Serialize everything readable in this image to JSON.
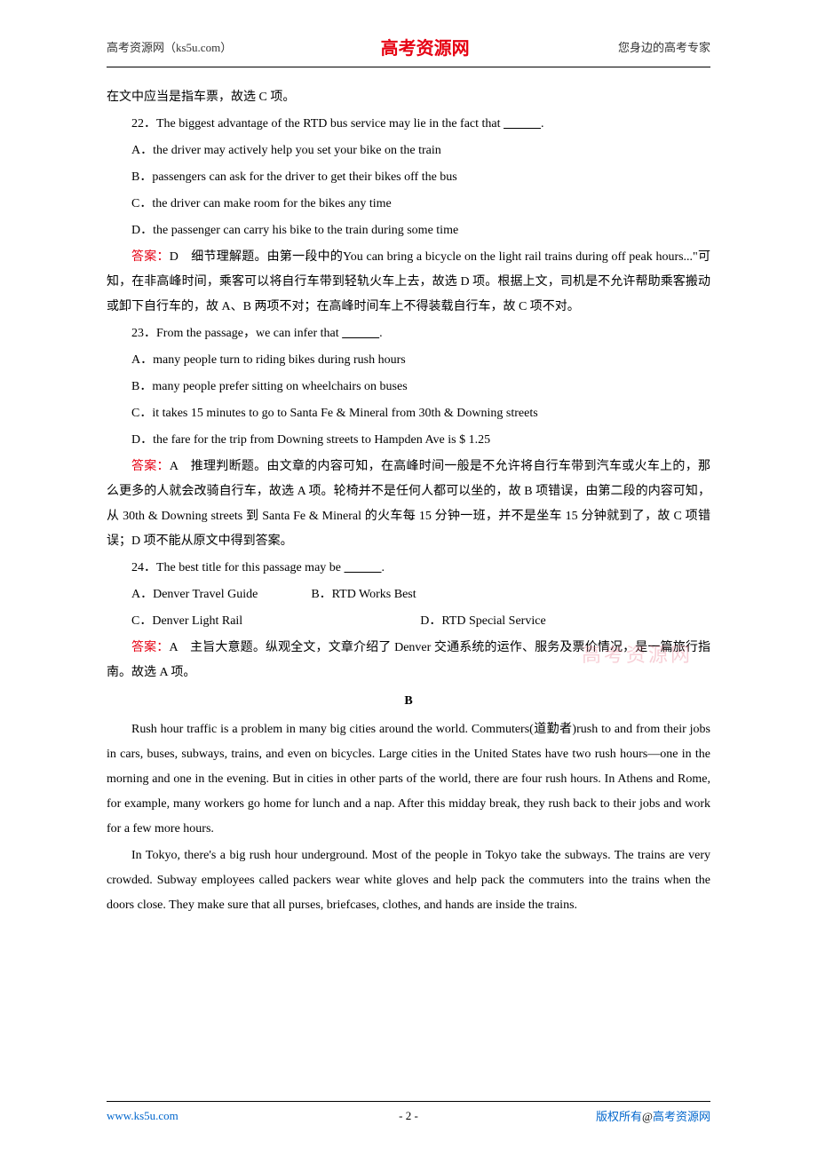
{
  "header": {
    "left": "高考资源网（ks5u.com）",
    "center": "高考资源网",
    "right": "您身边的高考专家"
  },
  "top_line": "在文中应当是指车票，故选 C 项。",
  "q22": {
    "stem_pre": "22．The biggest advantage of the RTD bus service may lie in the fact that ",
    "stem_post": ".",
    "A": "A．the driver may actively help you set your bike on the train",
    "B": "B．passengers can ask for the driver to get their bikes off the bus",
    "C": "C．the driver can make room for the bikes any time",
    "D": "D．the passenger can carry his bike to the train during some time",
    "answer_label": "答案：",
    "answer_letter": "D",
    "answer_text1": "　细节理解题。由第一段中的You can bring a bicycle on the light rail trains during off peak hours...\"可知，在非高峰时间，乘客可以将自行车带到轻轨火车上去，故选 D 项。根据上文，司机是不允许帮助乘客搬动或卸下自行车的，故 A、B 两项不对；在高峰时间车上不得装载自行车，故 C 项不对。"
  },
  "q23": {
    "stem_pre": "23．From the passage，we can infer that ",
    "stem_post": ".",
    "A": "A．many people turn to riding bikes during rush hours",
    "B": "B．many people prefer sitting on wheelchairs on buses",
    "C": "C．it takes 15 minutes to go to Santa Fe & Mineral  from 30th & Downing streets",
    "D": "D．the fare for the trip from Downing streets to Hampden Ave is $ 1.25",
    "answer_label": "答案：",
    "answer_letter": "A",
    "answer_text1": "　推理判断题。由文章的内容可知，在高峰时间一般是不允许将自行车带到汽车或火车上的，那么更多的人就会改骑自行车，故选 A 项。轮椅并不是任何人都可以坐的，故 B 项错误，由第二段的内容可知，从 30th & Downing streets 到 Santa Fe & Mineral 的火车每 15 分钟一班，并不是坐车 15 分钟就到了，故 C 项错误；D 项不能从原文中得到答案。"
  },
  "q24": {
    "stem_pre": "24．The best title for this passage may be ",
    "stem_post": ".",
    "A": "A．Denver Travel Guide",
    "B": "B．RTD Works Best",
    "C": "C．Denver Light Rail",
    "D": "D．RTD Special Service",
    "answer_label": "答案：",
    "answer_letter": "A",
    "answer_text1": "　主旨大意题。纵观全文，文章介绍了 Denver 交通系统的运作、服务及票价情况，是一篇旅行指南。故选 A 项。"
  },
  "section_b": "B",
  "passage": {
    "p1": "Rush hour traffic is a problem in many big cities around the world. Commuters(道勤者)rush to and from their jobs in cars, buses, subways, trains, and even on bicycles. Large cities in the United States have two rush hours—one in the morning and one in the evening. But in cities in other parts of the world, there are four rush hours. In Athens and Rome, for example, many workers go home for lunch and a nap. After this midday break, they rush back to their jobs and work for a few more hours.",
    "p2": "In Tokyo, there's a big rush hour underground. Most of the people in Tokyo take the subways. The trains are very crowded. Subway employees called packers wear white gloves and help pack the commuters into the trains when the doors close. They make sure that all purses, briefcases, clothes, and hands are inside the trains."
  },
  "watermark": "高考资源网",
  "footer": {
    "left": "www.ks5u.com",
    "center": "- 2 -",
    "right_pre": "版权所有",
    "right_at": "@",
    "right_post": "高考资源网"
  },
  "blank": "            "
}
